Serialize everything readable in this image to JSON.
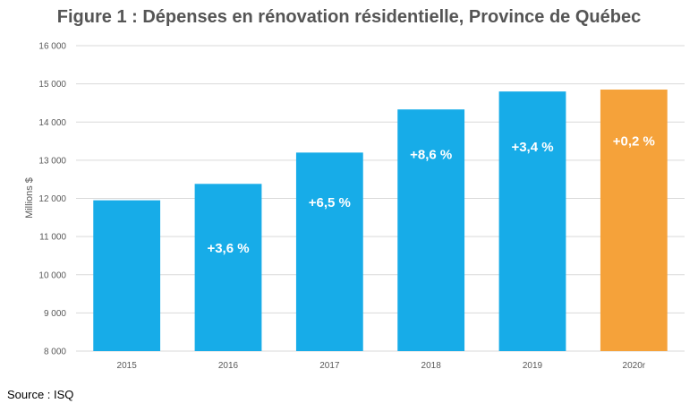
{
  "chart_data": {
    "type": "bar",
    "title": "Figure 1 : Dépenses en rénovation résidentielle, Province de Québec",
    "xlabel": "",
    "ylabel": "Millions $",
    "ylim": [
      8000,
      16000
    ],
    "yticks": [
      8000,
      9000,
      10000,
      11000,
      12000,
      13000,
      14000,
      15000,
      16000
    ],
    "ytick_labels": [
      "8 000",
      "9 000",
      "10 000",
      "11 000",
      "12 000",
      "13 000",
      "14 000",
      "15 000",
      "16 000"
    ],
    "grid": true,
    "categories": [
      "2015",
      "2016",
      "2017",
      "2018",
      "2019",
      "2020r"
    ],
    "values": [
      11950,
      12380,
      13200,
      14330,
      14800,
      14850
    ],
    "data_labels": [
      "",
      "+3,6 %",
      "+6,5 %",
      "+8,6 %",
      "+3,4 %",
      "+0,2 %"
    ],
    "label_values": [
      null,
      10700,
      11900,
      13150,
      13350,
      13500
    ],
    "colors": [
      "#17ACE8",
      "#17ACE8",
      "#17ACE8",
      "#17ACE8",
      "#17ACE8",
      "#F5A23A"
    ],
    "grid_color": "#D9D9D9"
  },
  "source": "Source : ISQ"
}
